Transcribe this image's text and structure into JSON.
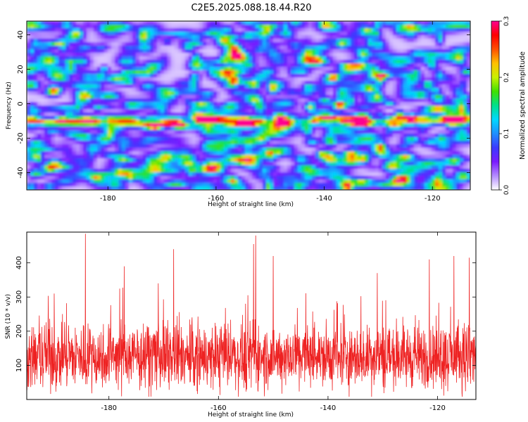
{
  "title": "C2E5.2025.088.18.44.R20",
  "chart_data": [
    {
      "type": "heatmap",
      "xlabel": "Height of straight line (km)",
      "ylabel": "Frequency (Hz)",
      "xlim": [
        -195,
        -113
      ],
      "ylim": [
        -50,
        48
      ],
      "xticks": [
        -180,
        -160,
        -140,
        -120
      ],
      "yticks": [
        -40,
        -20,
        0,
        20,
        40
      ],
      "colorbar": {
        "label": "Normalized spectral amplitude",
        "range": [
          0.0,
          0.3
        ],
        "ticks": [
          0.0,
          0.1,
          0.2,
          0.3
        ],
        "tick_labels": [
          "0.0",
          "0.1",
          "0.2",
          "0.3"
        ],
        "colors": [
          "#ffffff",
          "#b48cff",
          "#7a1bff",
          "#3a3aff",
          "#1f8fff",
          "#00d8ff",
          "#00e08c",
          "#40e000",
          "#c8f000",
          "#ffc000",
          "#ff5000",
          "#ff0000",
          "#ff0090"
        ]
      },
      "hotspots": [
        {
          "x": -167,
          "y": -12,
          "value": 0.29
        },
        {
          "x": -154,
          "y": -12,
          "value": 0.19
        },
        {
          "x": -152,
          "y": -10,
          "value": 0.16
        },
        {
          "x": -126,
          "y": -8,
          "value": 0.2
        },
        {
          "x": -124,
          "y": -9,
          "value": 0.18
        },
        {
          "x": -117,
          "y": -8,
          "value": 0.15
        }
      ]
    },
    {
      "type": "line",
      "xlabel": "Height of straight line (km)",
      "ylabel": "SNR (10 * v/v)",
      "xlim": [
        -195,
        -113
      ],
      "ylim": [
        0,
        490
      ],
      "xticks": [
        -180,
        -160,
        -140,
        -120
      ],
      "yticks": [
        100,
        200,
        300,
        400
      ],
      "color": "#ee2222",
      "mean": 125,
      "spikes": [
        {
          "x": -184.3,
          "y": 485
        },
        {
          "x": -153.2,
          "y": 480
        },
        {
          "x": -153.6,
          "y": 455
        },
        {
          "x": -168.2,
          "y": 440
        },
        {
          "x": -150.0,
          "y": 420
        },
        {
          "x": -117.0,
          "y": 420
        },
        {
          "x": -121.5,
          "y": 410
        },
        {
          "x": -114.2,
          "y": 415
        },
        {
          "x": -177.2,
          "y": 390
        },
        {
          "x": -190.0,
          "y": 310
        },
        {
          "x": -171.0,
          "y": 340
        },
        {
          "x": -131.0,
          "y": 370
        }
      ]
    }
  ]
}
